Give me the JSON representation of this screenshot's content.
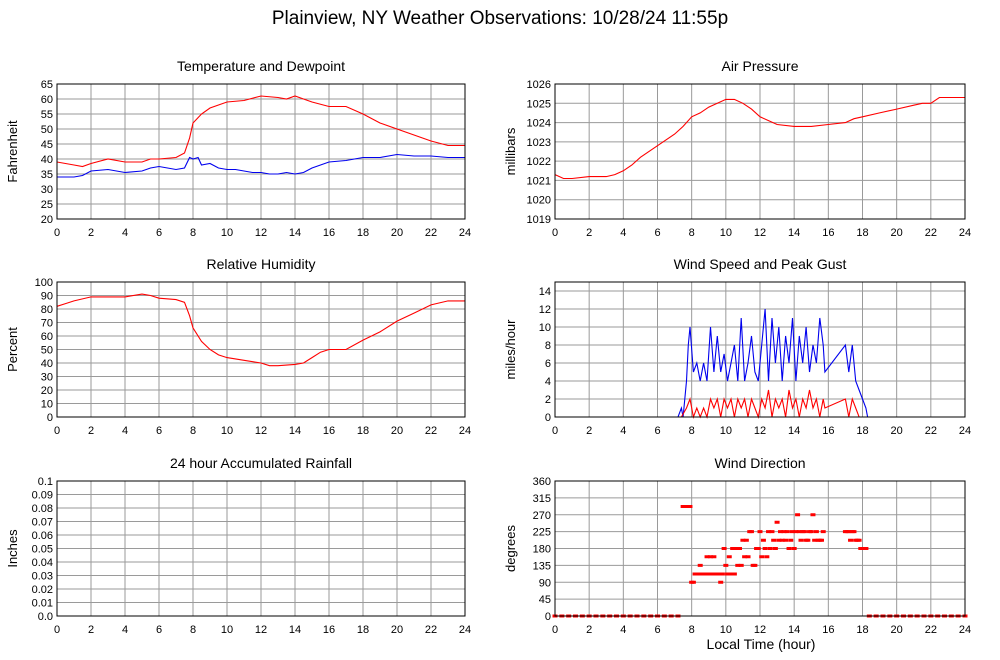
{
  "page": {
    "title": "Plainview, NY Weather Observations: 10/28/24 11:55p",
    "xlabel": "Local Time (hour)"
  },
  "colors": {
    "red": "#ff0000",
    "blue": "#0000ee",
    "grid": "#9a9a9a",
    "frame": "#000000"
  },
  "chart_data": [
    {
      "type": "line",
      "title": "Temperature and Dewpoint",
      "xlabel": "",
      "ylabel": "Fahrenheit",
      "xlim": [
        0,
        24
      ],
      "ylim": [
        20,
        65
      ],
      "yticks": [
        20,
        25,
        30,
        35,
        40,
        45,
        50,
        55,
        60,
        65
      ],
      "xticks": [
        0,
        2,
        4,
        6,
        8,
        10,
        12,
        14,
        16,
        18,
        20,
        22,
        24
      ],
      "grid": true,
      "series": [
        {
          "color": "#ff0000",
          "style": "line",
          "x": [
            0,
            1,
            1.5,
            2,
            3,
            4,
            5,
            5.5,
            6,
            7,
            7.5,
            7.8,
            8,
            8.5,
            9,
            10,
            11,
            12,
            13,
            13.5,
            14,
            14.5,
            15,
            16,
            17,
            18,
            19,
            20,
            21,
            22,
            23,
            24
          ],
          "y": [
            39,
            38,
            37.5,
            38.5,
            40,
            39,
            39,
            40,
            40,
            40.5,
            42,
            47,
            52,
            55,
            57,
            59,
            59.5,
            61,
            60.5,
            60,
            61,
            60,
            59,
            57.5,
            57.5,
            55,
            52,
            50,
            48,
            46,
            44.5,
            44.5
          ]
        },
        {
          "color": "#0000ee",
          "style": "line",
          "x": [
            0,
            1,
            1.5,
            2,
            3,
            4,
            5,
            5.5,
            6,
            7,
            7.5,
            7.8,
            8,
            8.3,
            8.5,
            9,
            9.5,
            10,
            10.5,
            11,
            11.5,
            12,
            12.5,
            13,
            13.5,
            14,
            14.5,
            15,
            16,
            17,
            18,
            19,
            20,
            21,
            22,
            23,
            24
          ],
          "y": [
            34,
            34,
            34.5,
            36,
            36.5,
            35.5,
            36,
            37,
            37.5,
            36.5,
            37,
            40.5,
            40,
            40.5,
            38,
            38.5,
            37,
            36.5,
            36.5,
            36,
            35.5,
            35.5,
            35,
            35,
            35.5,
            35,
            35.5,
            37,
            39,
            39.5,
            40.5,
            40.5,
            41.5,
            41,
            41,
            40.5,
            40.5
          ]
        }
      ]
    },
    {
      "type": "line",
      "title": "Air Pressure",
      "xlabel": "",
      "ylabel": "millibars",
      "xlim": [
        0,
        24
      ],
      "ylim": [
        1019,
        1026
      ],
      "yticks": [
        1019,
        1020,
        1021,
        1022,
        1023,
        1024,
        1025,
        1026
      ],
      "xticks": [
        0,
        2,
        4,
        6,
        8,
        10,
        12,
        14,
        16,
        18,
        20,
        22,
        24
      ],
      "grid": true,
      "series": [
        {
          "color": "#ff0000",
          "style": "line",
          "x": [
            0,
            0.5,
            1,
            2,
            3,
            3.5,
            4,
            4.5,
            5,
            6,
            7,
            7.5,
            8,
            8.5,
            9,
            9.5,
            10,
            10.5,
            11,
            11.5,
            12,
            12.5,
            13,
            14,
            15,
            16,
            17,
            17.5,
            18,
            19,
            20,
            21,
            21.5,
            22,
            22.5,
            23,
            24
          ],
          "y": [
            1021.3,
            1021.1,
            1021.1,
            1021.2,
            1021.2,
            1021.3,
            1021.5,
            1021.8,
            1022.2,
            1022.8,
            1023.4,
            1023.8,
            1024.3,
            1024.5,
            1024.8,
            1025.0,
            1025.2,
            1025.2,
            1025.0,
            1024.7,
            1024.3,
            1024.1,
            1023.9,
            1023.8,
            1023.8,
            1023.9,
            1024.0,
            1024.2,
            1024.3,
            1024.5,
            1024.7,
            1024.9,
            1025.0,
            1025.0,
            1025.3,
            1025.3,
            1025.3
          ]
        }
      ]
    },
    {
      "type": "line",
      "title": "Relative Humidity",
      "xlabel": "",
      "ylabel": "Percent",
      "xlim": [
        0,
        24
      ],
      "ylim": [
        0,
        100
      ],
      "yticks": [
        0,
        10,
        20,
        30,
        40,
        50,
        60,
        70,
        80,
        90,
        100
      ],
      "xticks": [
        0,
        2,
        4,
        6,
        8,
        10,
        12,
        14,
        16,
        18,
        20,
        22,
        24
      ],
      "grid": true,
      "series": [
        {
          "color": "#ff0000",
          "style": "line",
          "x": [
            0,
            0.5,
            1,
            2,
            3,
            4,
            5,
            5.5,
            6,
            7,
            7.5,
            7.8,
            8,
            8.5,
            9,
            9.5,
            10,
            11,
            12,
            12.5,
            13,
            14,
            14.5,
            15,
            15.5,
            16,
            17,
            18,
            19,
            20,
            21,
            22,
            23,
            24
          ],
          "y": [
            82,
            84,
            86,
            89,
            89,
            89,
            91,
            90,
            88,
            87,
            85,
            75,
            66,
            56,
            50,
            46,
            44,
            42,
            40,
            38,
            38,
            39,
            40,
            44,
            48,
            50,
            50,
            57,
            63,
            71,
            77,
            83,
            86,
            86
          ]
        }
      ]
    },
    {
      "type": "line",
      "title": "Wind Speed and Peak Gust",
      "xlabel": "",
      "ylabel": "miles/hour",
      "xlim": [
        0,
        24
      ],
      "ylim": [
        0,
        15
      ],
      "yticks": [
        0,
        2,
        4,
        6,
        8,
        10,
        12,
        14
      ],
      "xticks": [
        0,
        2,
        4,
        6,
        8,
        10,
        12,
        14,
        16,
        18,
        20,
        22,
        24
      ],
      "grid": true,
      "series": [
        {
          "color": "#0000ee",
          "style": "line",
          "x": [
            0,
            7.2,
            7.4,
            7.5,
            7.7,
            7.8,
            7.9,
            8.1,
            8.3,
            8.5,
            8.7,
            8.9,
            9.1,
            9.3,
            9.5,
            9.7,
            9.9,
            10.1,
            10.3,
            10.5,
            10.7,
            10.9,
            11.1,
            11.3,
            11.5,
            11.7,
            11.9,
            12.1,
            12.3,
            12.5,
            12.7,
            12.9,
            13.1,
            13.3,
            13.5,
            13.7,
            13.9,
            14.1,
            14.3,
            14.5,
            14.7,
            14.9,
            15.1,
            15.3,
            15.5,
            15.7,
            15.8,
            17.0,
            17.2,
            17.4,
            17.6,
            17.8,
            18.0,
            18.2,
            18.3,
            24
          ],
          "y": [
            0,
            0,
            1,
            0,
            4,
            8,
            10,
            5,
            6,
            4,
            6,
            4,
            10,
            5,
            9,
            5,
            7,
            4,
            6,
            8,
            4,
            11,
            4,
            6,
            9,
            5,
            4,
            8,
            12,
            4,
            11,
            6,
            10,
            4,
            9,
            6,
            11,
            4,
            9,
            6,
            10,
            5,
            8,
            6,
            11,
            8,
            5,
            8,
            5,
            8,
            4,
            3,
            2,
            1,
            0,
            0
          ]
        },
        {
          "color": "#ff0000",
          "style": "line",
          "x": [
            0,
            7.4,
            7.7,
            7.9,
            8.1,
            8.3,
            8.5,
            8.7,
            8.9,
            9.1,
            9.3,
            9.5,
            9.7,
            9.9,
            10.1,
            10.3,
            10.5,
            10.7,
            10.9,
            11.1,
            11.3,
            11.5,
            11.7,
            11.9,
            12.1,
            12.3,
            12.5,
            12.7,
            12.9,
            13.1,
            13.3,
            13.5,
            13.7,
            13.9,
            14.1,
            14.3,
            14.5,
            14.7,
            14.9,
            15.1,
            15.3,
            15.5,
            15.7,
            15.8,
            17.0,
            17.2,
            17.4,
            17.6,
            17.8,
            18.0,
            18.3,
            24
          ],
          "y": [
            0,
            0,
            1,
            2,
            0,
            1,
            0,
            1,
            0,
            2,
            1,
            2,
            0,
            2,
            1,
            2,
            0,
            2,
            1,
            2,
            0,
            2,
            1,
            0,
            2,
            1,
            3,
            0,
            2,
            1,
            2,
            0,
            3,
            1,
            2,
            0,
            2,
            1,
            3,
            1,
            2,
            0,
            2,
            1,
            2,
            0,
            2,
            1,
            0,
            0,
            0,
            0
          ]
        }
      ]
    },
    {
      "type": "line",
      "title": "24 hour Accumulated Rainfall",
      "xlabel": "",
      "ylabel": "Inches",
      "xlim": [
        0,
        24
      ],
      "ylim": [
        0,
        0.1
      ],
      "yticks": [
        0.0,
        0.01,
        0.02,
        0.03,
        0.04,
        0.05,
        0.06,
        0.07,
        0.08,
        0.09,
        0.1
      ],
      "ytick_labels": [
        "0.0",
        "0.01",
        "0.02",
        "0.03",
        "0.04",
        "0.05",
        "0.06",
        "0.07",
        "0.08",
        "0.09",
        "0.1"
      ],
      "xticks": [
        0,
        2,
        4,
        6,
        8,
        10,
        12,
        14,
        16,
        18,
        20,
        22,
        24
      ],
      "grid": true,
      "series": [
        {
          "color": "#ff0000",
          "style": "line",
          "x": [
            0,
            24
          ],
          "y": [
            0,
            0
          ]
        }
      ]
    },
    {
      "type": "scatter",
      "title": "Wind Direction",
      "xlabel": "",
      "ylabel": "degrees",
      "xlim": [
        0,
        24
      ],
      "ylim": [
        0,
        360
      ],
      "yticks": [
        0,
        45,
        90,
        135,
        180,
        225,
        270,
        315,
        360
      ],
      "xticks": [
        0,
        2,
        4,
        6,
        8,
        10,
        12,
        14,
        16,
        18,
        20,
        22,
        24
      ],
      "grid": true,
      "series": [
        {
          "color": "#ff0000",
          "style": "points",
          "x": [
            0,
            0.4,
            0.8,
            1.2,
            1.6,
            2,
            2.4,
            2.8,
            3.2,
            3.6,
            4,
            4.4,
            4.8,
            5.2,
            5.6,
            6,
            6.4,
            6.8,
            7.2,
            7.5,
            7.7,
            7.9,
            8,
            8.1,
            8.2,
            8.3,
            8.4,
            8.5,
            8.6,
            8.7,
            8.8,
            8.9,
            9.0,
            9.1,
            9.2,
            9.3,
            9.4,
            9.5,
            9.6,
            9.7,
            9.8,
            9.9,
            10.0,
            10.1,
            10.2,
            10.3,
            10.4,
            10.5,
            10.6,
            10.7,
            10.8,
            10.9,
            11.0,
            11.1,
            11.2,
            11.3,
            11.4,
            11.5,
            11.6,
            11.7,
            11.8,
            11.9,
            12.0,
            12.1,
            12.2,
            12.3,
            12.4,
            12.5,
            12.6,
            12.7,
            12.8,
            12.9,
            13.0,
            13.1,
            13.2,
            13.3,
            13.4,
            13.5,
            13.6,
            13.7,
            13.8,
            13.9,
            14.0,
            14.1,
            14.2,
            14.3,
            14.4,
            14.5,
            14.6,
            14.7,
            14.8,
            14.9,
            15.0,
            15.1,
            15.2,
            15.3,
            15.4,
            15.5,
            15.6,
            15.7,
            17.0,
            17.1,
            17.2,
            17.3,
            17.4,
            17.5,
            17.6,
            17.7,
            17.8,
            17.9,
            18.0,
            18.1,
            18.2,
            18.4,
            18.8,
            19.2,
            19.6,
            20,
            20.4,
            20.8,
            21.2,
            21.6,
            22,
            22.4,
            22.8,
            23.2,
            23.6,
            24
          ],
          "y": [
            0,
            0,
            0,
            0,
            0,
            0,
            0,
            0,
            0,
            0,
            0,
            0,
            0,
            0,
            0,
            0,
            0,
            0,
            0,
            292,
            292,
            292,
            90,
            90,
            112,
            112,
            112,
            135,
            112,
            112,
            112,
            158,
            112,
            158,
            112,
            158,
            112,
            112,
            112,
            90,
            112,
            180,
            135,
            112,
            158,
            112,
            180,
            112,
            180,
            135,
            180,
            135,
            202,
            158,
            202,
            158,
            225,
            225,
            135,
            135,
            180,
            180,
            225,
            158,
            202,
            180,
            158,
            225,
            180,
            225,
            202,
            180,
            250,
            202,
            225,
            202,
            225,
            202,
            225,
            180,
            202,
            225,
            180,
            225,
            270,
            225,
            202,
            225,
            225,
            202,
            202,
            225,
            225,
            270,
            202,
            225,
            202,
            202,
            202,
            225,
            225,
            225,
            225,
            202,
            225,
            225,
            202,
            202,
            202,
            180,
            180,
            180,
            180,
            0,
            0,
            0,
            0,
            0,
            0,
            0,
            0,
            0,
            0,
            0,
            0,
            0,
            0,
            0
          ]
        }
      ]
    }
  ]
}
